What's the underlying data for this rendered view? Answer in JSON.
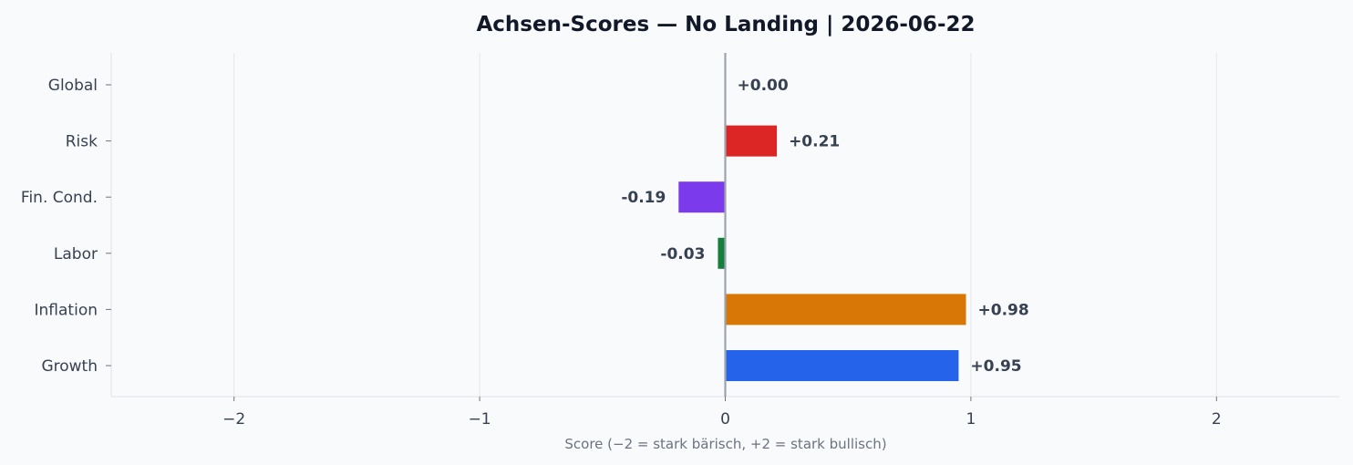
{
  "chart_data": {
    "type": "bar",
    "orientation": "horizontal",
    "title": "Achsen-Scores — No Landing | 2026-06-22",
    "xlabel": "Score (−2 = stark bärisch, +2 = stark bullisch)",
    "ylabel": "",
    "xlim": [
      -2.5,
      2.5
    ],
    "xticks": [
      -2,
      -1,
      0,
      1,
      2
    ],
    "xtick_labels": [
      "−2",
      "−1",
      "0",
      "1",
      "2"
    ],
    "grid": "vertical",
    "categories": [
      "Global",
      "Risk",
      "Fin. Cond.",
      "Labor",
      "Inflation",
      "Growth"
    ],
    "values": [
      0.0,
      0.21,
      -0.19,
      -0.03,
      0.98,
      0.95
    ],
    "value_labels": [
      "+0.00",
      "+0.21",
      "-0.19",
      "-0.03",
      "+0.98",
      "+0.95"
    ],
    "colors": [
      "#9ca3af",
      "#dc2626",
      "#7c3aed",
      "#15803d",
      "#d97706",
      "#2563eb"
    ]
  }
}
